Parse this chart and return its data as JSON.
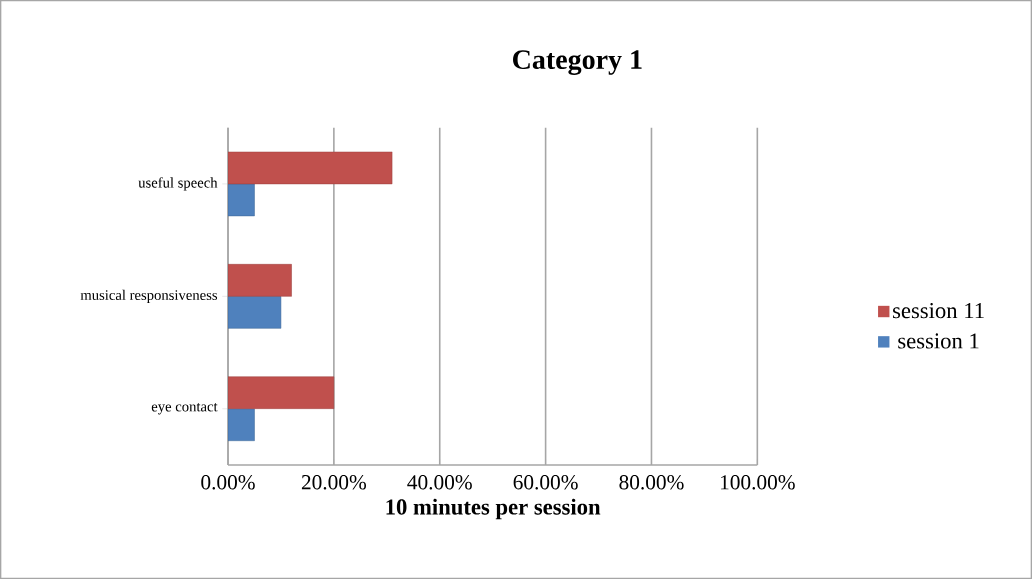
{
  "chart_data": {
    "type": "bar",
    "orientation": "horizontal",
    "title": "Category 1",
    "xlabel": "10 minutes per session",
    "categories": [
      "useful speech",
      "musical responsiveness",
      "eye contact"
    ],
    "series": [
      {
        "name": "session 1",
        "color": "#4f81bd",
        "values": [
          0.05,
          0.1,
          0.05
        ]
      },
      {
        "name": "session 11",
        "color": "#c0504d",
        "values": [
          0.31,
          0.12,
          0.2
        ]
      }
    ],
    "xlim": [
      0,
      1
    ],
    "xticks": [
      {
        "value": 0,
        "label": "0.00%"
      },
      {
        "value": 0.2,
        "label": "20.00%"
      },
      {
        "value": 0.4,
        "label": "40.00%"
      },
      {
        "value": 0.6,
        "label": "60.00%"
      },
      {
        "value": 0.8,
        "label": "80.00%"
      },
      {
        "value": 1,
        "label": "100.00%"
      }
    ],
    "grid": "x",
    "legend": "right"
  }
}
